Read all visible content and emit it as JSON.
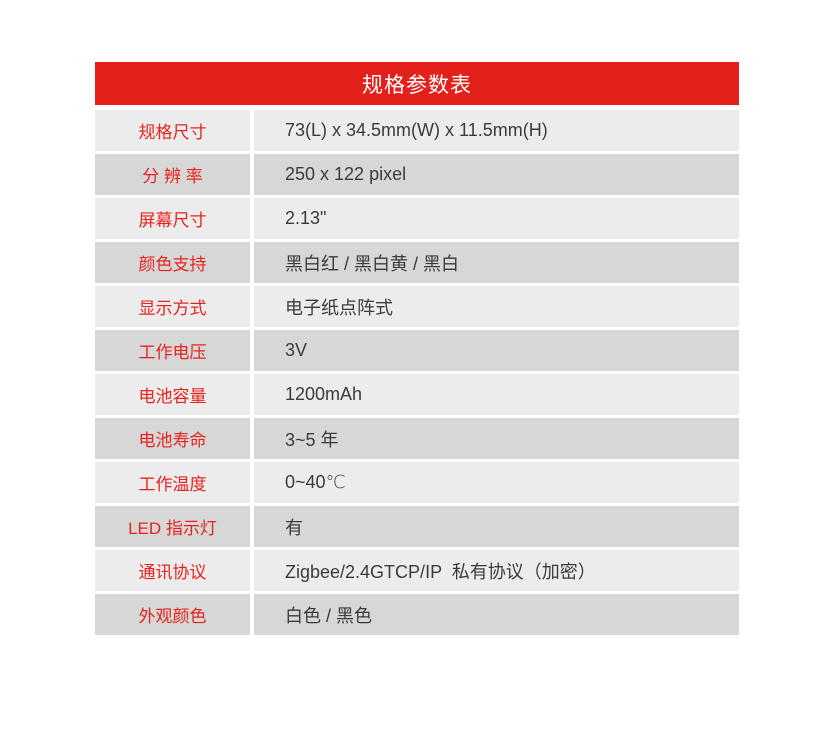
{
  "table": {
    "title": "规格参数表",
    "rows": [
      {
        "label": "规格尺寸",
        "value": "73(L) x 34.5mm(W) x 11.5mm(H)"
      },
      {
        "label": "分 辨 率",
        "value": "250 x 122 pixel"
      },
      {
        "label": "屏幕尺寸",
        "value": "2.13\""
      },
      {
        "label": "颜色支持",
        "value": "黑白红 / 黑白黄 / 黑白"
      },
      {
        "label": "显示方式",
        "value": "电子纸点阵式"
      },
      {
        "label": "工作电压",
        "value": "3V"
      },
      {
        "label": "电池容量",
        "value": "1200mAh"
      },
      {
        "label": "电池寿命",
        "value": "3~5 年"
      },
      {
        "label": "工作温度",
        "value": "0~40℃"
      },
      {
        "label": "LED 指示灯",
        "value": "有"
      },
      {
        "label": "通讯协议",
        "value": "Zigbee/2.4GTCP/IP  私有协议（加密）"
      },
      {
        "label": "外观颜色",
        "value": "白色 / 黑色"
      }
    ],
    "colors": {
      "header_bg": "#e3201a",
      "title_text": "#ffffff",
      "label_text": "#e8231e",
      "value_text": "#3b3b3b",
      "row_light": "#ececec",
      "row_dark": "#d7d7d7"
    }
  }
}
